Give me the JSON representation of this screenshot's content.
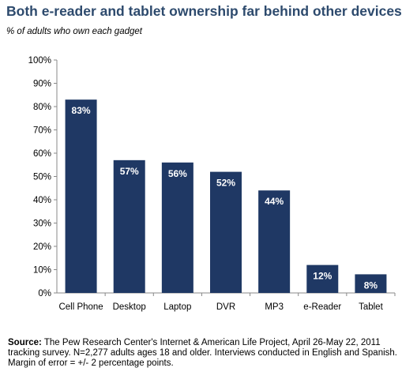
{
  "title": "Both e-reader and tablet ownership far behind other devices",
  "subtitle": "% of adults who own each gadget",
  "source": {
    "label": "Source:",
    "text": " The Pew Research Center's Internet & American Life Project, April 26-May 22, 2011 tracking survey. N=2,277 adults ages 18 and older. Interviews conducted in English and Spanish. Margin of error = +/- 2 percentage points."
  },
  "chart_data": {
    "type": "bar",
    "title": "Both e-reader and tablet ownership far behind other devices",
    "subtitle": "% of adults who own each gadget",
    "categories": [
      "Cell Phone",
      "Desktop",
      "Laptop",
      "DVR",
      "MP3",
      "e-Reader",
      "Tablet"
    ],
    "values": [
      83,
      57,
      56,
      52,
      44,
      12,
      8
    ],
    "data_labels": [
      "83%",
      "57%",
      "56%",
      "52%",
      "44%",
      "12%",
      "8%"
    ],
    "ylim": [
      0,
      100
    ],
    "yticks": [
      "0%",
      "10%",
      "20%",
      "30%",
      "40%",
      "50%",
      "60%",
      "70%",
      "80%",
      "90%",
      "100%"
    ],
    "grid": false,
    "bar_color": "#1f3864",
    "label_color": "#ffffff"
  }
}
